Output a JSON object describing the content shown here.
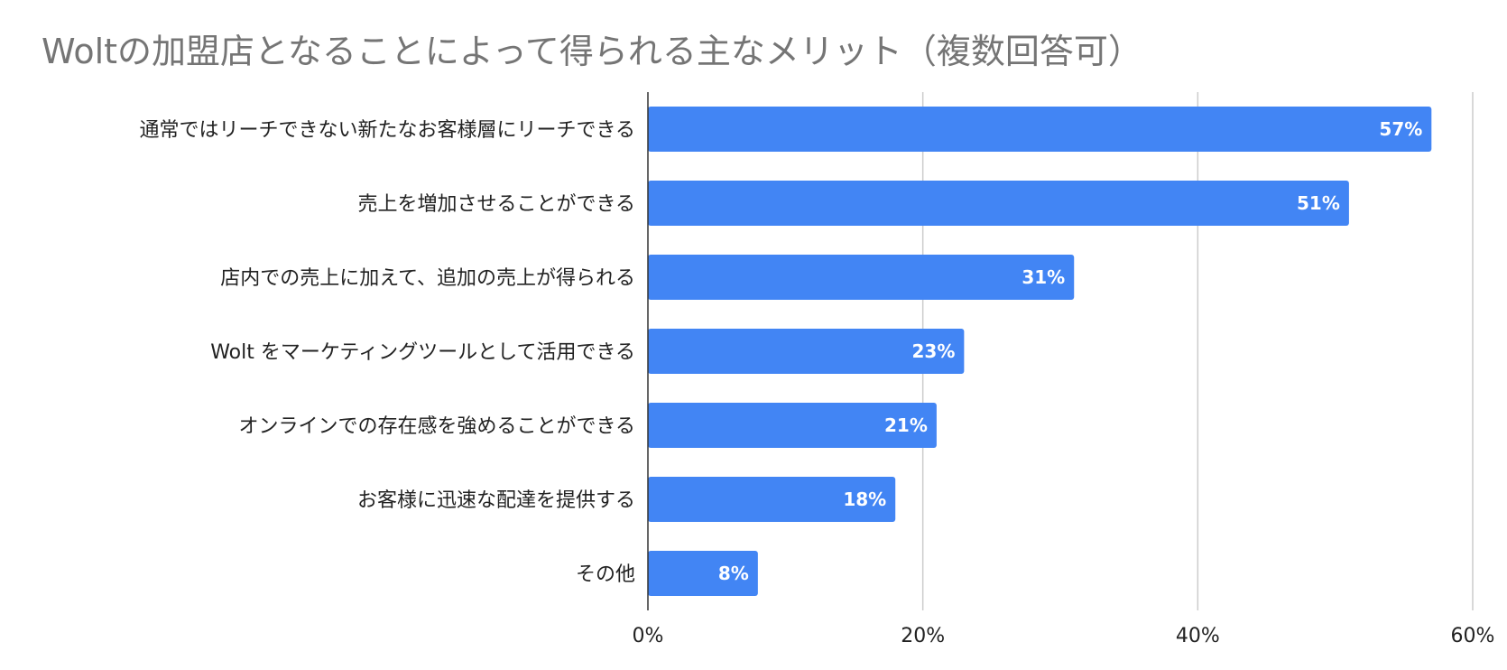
{
  "chart_data": {
    "type": "bar",
    "orientation": "horizontal",
    "title": "Woltの加盟店となることによって得られる主なメリット（複数回答可）",
    "categories": [
      "通常ではリーチできない新たなお客様層にリーチできる",
      "売上を増加させることができる",
      "店内での売上に加えて、追加の売上が得られる",
      "Wolt をマーケティングツールとして活用できる",
      "オンラインでの存在感を強めることができる",
      "お客様に迅速な配達を提供する",
      "その他"
    ],
    "values": [
      57,
      51,
      31,
      23,
      21,
      18,
      8
    ],
    "data_labels": [
      "57%",
      "51%",
      "31%",
      "23%",
      "21%",
      "18%",
      "8%"
    ],
    "xlim": [
      0,
      60
    ],
    "x_ticks": [
      0,
      20,
      40,
      60
    ],
    "x_tick_labels": [
      "0%",
      "20%",
      "40%",
      "60%"
    ],
    "grid": true,
    "legend": "none",
    "bar_color": "#4285f4",
    "grid_color": "#cccccc"
  }
}
